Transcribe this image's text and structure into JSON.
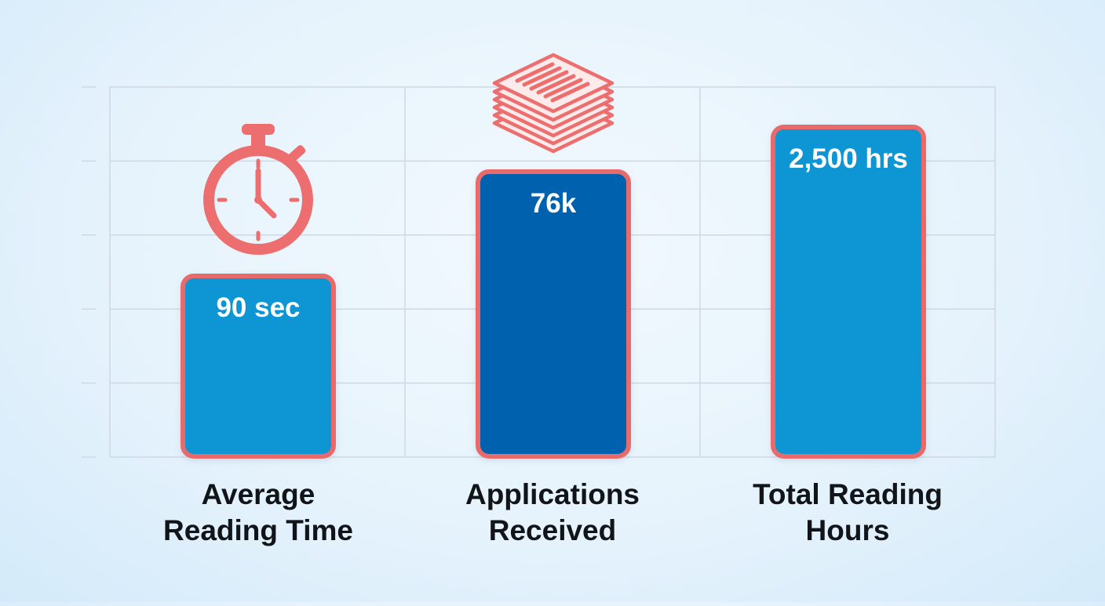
{
  "chart_data": {
    "type": "bar",
    "categories": [
      "Average\nReading Time",
      "Applications\nReceived",
      "Total Reading\nHours"
    ],
    "values": [
      90,
      76000,
      2500
    ],
    "units": [
      "sec",
      "",
      "hrs"
    ],
    "value_labels": [
      "90 sec",
      "76k",
      "2,500 hrs"
    ],
    "bar_colors": [
      "#0796d3",
      "#0562ae",
      "#0796d3"
    ],
    "bar_border_color": "#e96b6b",
    "icon_color": "#ec6e6e",
    "icons": [
      "stopwatch-icon",
      "document-stack-icon",
      ""
    ],
    "grid": true,
    "title": "",
    "xlabel": "",
    "ylabel": ""
  }
}
